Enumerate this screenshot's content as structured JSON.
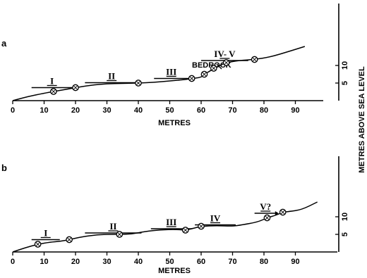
{
  "ylabel": "METRES ABOVE SEA LEVEL",
  "chart_data": [
    {
      "panel": "a",
      "type": "line",
      "xlabel": "METRES",
      "xlim": [
        0,
        98
      ],
      "ylim": [
        0,
        16
      ],
      "xticks": [
        0,
        10,
        20,
        30,
        40,
        50,
        60,
        70,
        80,
        90
      ],
      "yticks": [
        5,
        10
      ],
      "profile_x": [
        0,
        5,
        10,
        13,
        17,
        20,
        25,
        30,
        35,
        40,
        45,
        50,
        55,
        57,
        60,
        61,
        63,
        64,
        66,
        68,
        72,
        77,
        82,
        88,
        93
      ],
      "profile_y": [
        0,
        1.2,
        2.1,
        2.6,
        3.2,
        3.7,
        4.4,
        4.8,
        4.9,
        5.0,
        5.2,
        5.6,
        6.0,
        6.3,
        6.6,
        7.5,
        8.5,
        9.2,
        10.0,
        10.8,
        11.4,
        11.7,
        12.4,
        14.0,
        15.4
      ],
      "samples": [
        {
          "x": 13,
          "y": 2.6
        },
        {
          "x": 20,
          "y": 3.7
        },
        {
          "x": 40,
          "y": 5.0
        },
        {
          "x": 57,
          "y": 6.3
        },
        {
          "x": 61,
          "y": 7.5
        },
        {
          "x": 64,
          "y": 9.2
        },
        {
          "x": 68,
          "y": 10.8
        },
        {
          "x": 77,
          "y": 11.7
        }
      ],
      "levels": [
        {
          "label": "I",
          "x1": 6,
          "x2": 19,
          "y": 3.7
        },
        {
          "label": "II",
          "x1": 23,
          "x2": 40,
          "y": 5.1
        },
        {
          "label": "III",
          "x1": 45,
          "x2": 56,
          "y": 6.3
        },
        {
          "label": "IV- V",
          "x1": 60,
          "x2": 75,
          "y": 11.4
        }
      ],
      "annotation": "BEDROCK"
    },
    {
      "panel": "b",
      "type": "line",
      "xlabel": "METRES",
      "xlim": [
        0,
        98
      ],
      "ylim": [
        0,
        16
      ],
      "xticks": [
        0,
        10,
        20,
        30,
        40,
        50,
        60,
        70,
        80,
        90
      ],
      "yticks": [
        5,
        10
      ],
      "profile_x": [
        0,
        4,
        8,
        12,
        15,
        18,
        22,
        27,
        31,
        34,
        38,
        42,
        47,
        52,
        55,
        57,
        60,
        65,
        70,
        73,
        78,
        81,
        84,
        86,
        88,
        92,
        97
      ],
      "profile_y": [
        0,
        1.2,
        2.2,
        2.8,
        3.0,
        3.5,
        4.3,
        4.9,
        5.0,
        5.0,
        5.1,
        5.8,
        6.3,
        6.4,
        6.2,
        6.6,
        7.3,
        7.5,
        7.3,
        7.7,
        8.5,
        9.7,
        10.5,
        11.3,
        11.5,
        12.0,
        14.2
      ],
      "samples": [
        {
          "x": 8,
          "y": 2.2
        },
        {
          "x": 18,
          "y": 3.5
        },
        {
          "x": 34,
          "y": 5.0
        },
        {
          "x": 55,
          "y": 6.2
        },
        {
          "x": 60,
          "y": 7.3
        },
        {
          "x": 81,
          "y": 9.7
        },
        {
          "x": 86,
          "y": 11.3
        }
      ],
      "levels": [
        {
          "label": "I",
          "x1": 6,
          "x2": 15,
          "y": 3.5
        },
        {
          "label": "II",
          "x1": 23,
          "x2": 41,
          "y": 5.4
        },
        {
          "label": "III",
          "x1": 44,
          "x2": 57,
          "y": 6.6
        },
        {
          "label": "IV",
          "x1": 58,
          "x2": 71,
          "y": 7.7
        },
        {
          "label": "V?",
          "x1": 77,
          "x2": 84,
          "y": 11.0
        }
      ]
    }
  ]
}
